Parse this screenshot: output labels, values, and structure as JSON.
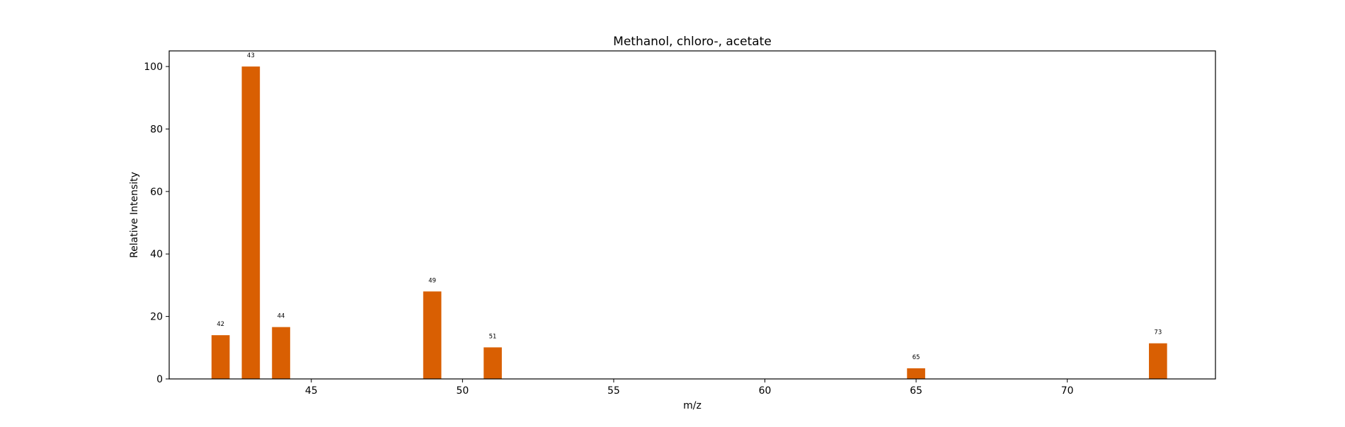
{
  "chart_data": {
    "type": "bar",
    "title": "Methanol, chloro-, acetate",
    "xlabel": "m/z",
    "ylabel": "Relative Intensity",
    "xlim": [
      40.3,
      74.9
    ],
    "ylim": [
      0,
      105
    ],
    "x_ticks": [
      45,
      50,
      55,
      60,
      65,
      70
    ],
    "y_ticks": [
      0,
      20,
      40,
      60,
      80,
      100
    ],
    "bar_color": "#d95f02",
    "grid": false,
    "legend": "none",
    "points": [
      {
        "x": 42,
        "y": 14,
        "label": "42"
      },
      {
        "x": 43,
        "y": 100,
        "label": "43"
      },
      {
        "x": 44,
        "y": 16.6,
        "label": "44"
      },
      {
        "x": 49,
        "y": 28,
        "label": "49"
      },
      {
        "x": 51,
        "y": 10.1,
        "label": "51"
      },
      {
        "x": 65,
        "y": 3.4,
        "label": "65"
      },
      {
        "x": 73,
        "y": 11.4,
        "label": "73"
      }
    ]
  }
}
